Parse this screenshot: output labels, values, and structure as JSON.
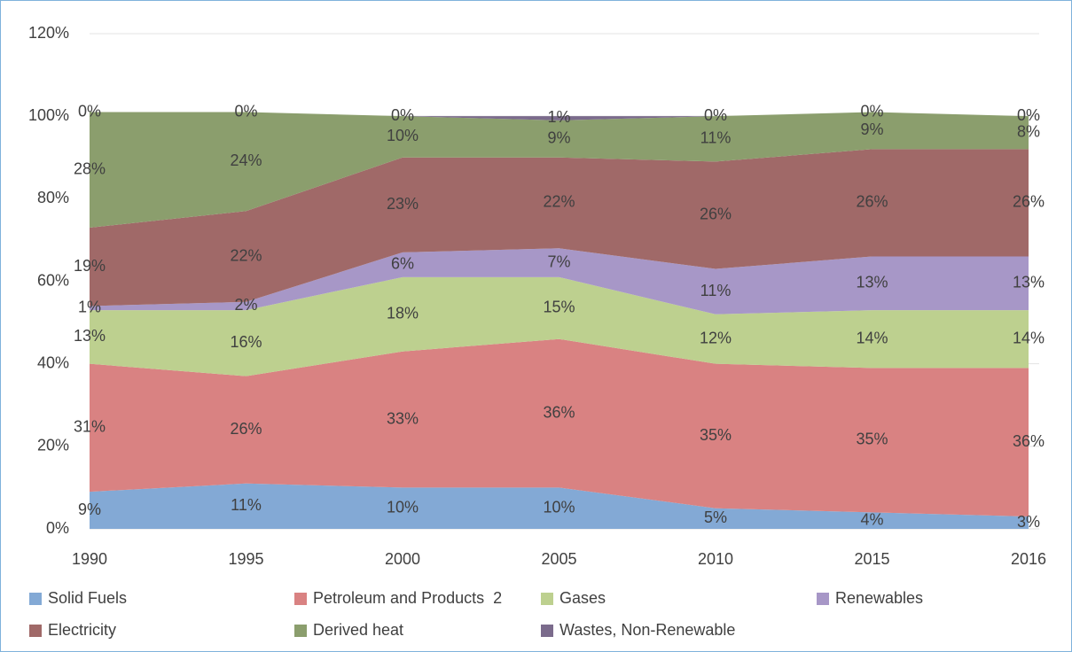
{
  "chart_data": {
    "type": "stacked_area",
    "categories": [
      "1990",
      "1995",
      "2000",
      "2005",
      "2010",
      "2015",
      "2016"
    ],
    "ylim": [
      0,
      120
    ],
    "yticks": [
      {
        "value": 0,
        "label": "0%"
      },
      {
        "value": 20,
        "label": "20%"
      },
      {
        "value": 40,
        "label": "40%"
      },
      {
        "value": 60,
        "label": "60%"
      },
      {
        "value": 80,
        "label": "80%"
      },
      {
        "value": 100,
        "label": "100%"
      },
      {
        "value": 120,
        "label": "120%"
      }
    ],
    "grid": true,
    "legend": "bottom",
    "series": [
      {
        "name": "Solid Fuels",
        "color": "#83a9d5",
        "values": [
          9,
          11,
          10,
          10,
          5,
          4,
          3
        ],
        "value_labels": [
          "9%",
          "11%",
          "10%",
          "10%",
          "5%",
          "4%",
          "3%"
        ]
      },
      {
        "name": "Petroleum and Products  2",
        "color": "#d98282",
        "values": [
          31,
          26,
          33,
          36,
          35,
          35,
          36
        ],
        "value_labels": [
          "31%",
          "26%",
          "33%",
          "36%",
          "35%",
          "35%",
          "36%"
        ]
      },
      {
        "name": "Gases",
        "color": "#bdd08f",
        "values": [
          13,
          16,
          18,
          15,
          12,
          14,
          14
        ],
        "value_labels": [
          "13%",
          "16%",
          "18%",
          "15%",
          "12%",
          "14%",
          "14%"
        ]
      },
      {
        "name": "Renewables",
        "color": "#a797c7",
        "values": [
          1,
          2,
          6,
          7,
          11,
          13,
          13
        ],
        "value_labels": [
          "1%",
          "2%",
          "6%",
          "7%",
          "11%",
          "13%",
          "13%"
        ]
      },
      {
        "name": "Electricity",
        "color": "#a06968",
        "values": [
          19,
          22,
          23,
          22,
          26,
          26,
          26
        ],
        "value_labels": [
          "19%",
          "22%",
          "23%",
          "22%",
          "26%",
          "26%",
          "26%"
        ]
      },
      {
        "name": "Derived heat",
        "color": "#8b9e6d",
        "values": [
          28,
          24,
          10,
          9,
          11,
          9,
          8
        ],
        "value_labels": [
          "28%",
          "24%",
          "10%",
          "9%",
          "11%",
          "9%",
          "8%"
        ]
      },
      {
        "name": "Wastes, Non-Renewable",
        "color": "#7b6b8c",
        "values": [
          0,
          0,
          0,
          1,
          0,
          0,
          0
        ],
        "value_labels": [
          "0%",
          "0%",
          "0%",
          "1%",
          "0%",
          "0%",
          "0%"
        ]
      }
    ]
  }
}
